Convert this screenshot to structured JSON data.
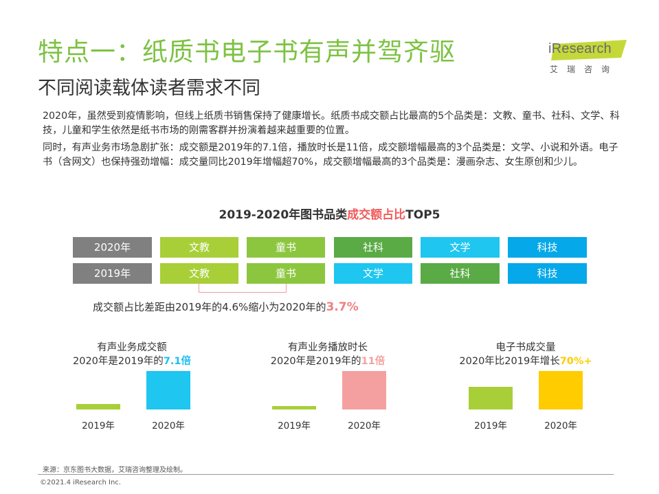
{
  "header": {
    "title": "特点一：纸质书电子书有声并驾齐驱",
    "subtitle": "不同阅读载体读者需求不同"
  },
  "logo": {
    "brand": "iResearch",
    "cn": "艾瑞咨询",
    "icon": "iresearch-logo-icon",
    "accent": "#c5d83a"
  },
  "paragraphs": [
    "2020年，虽然受到疫情影响，但线上纸质书销售保持了健康增长。纸质书成交额占比最高的5个品类是：文教、童书、社科、文学、科技，儿童和学生依然是纸书市场的刚需客群并扮演着越来越重要的位置。",
    "同时，有声业务市场急剧扩张：成交额是2019年的7.1倍，播放时长是11倍，成交额增幅最高的3个品类是：文学、小说和外语。电子书（含网文）也保持强劲增幅：成交量同比2019年增幅超70%，成交额增幅最高的3个品类是：漫画杂志、女生原创和少儿。"
  ],
  "ranking": {
    "title_prefix": "2019-2020年图书品类",
    "title_highlight": "成交额占比",
    "title_suffix": "TOP5",
    "rows": [
      {
        "year": "2020年",
        "items": [
          "文教",
          "童书",
          "社科",
          "文学",
          "科技"
        ]
      },
      {
        "year": "2019年",
        "items": [
          "文教",
          "童书",
          "文学",
          "社科",
          "科技"
        ]
      }
    ],
    "colors": {
      "year": "#808080",
      "文教": "#a8cf38",
      "童书": "#8cc63f",
      "社科": "#5aab46",
      "文学": "#1ec6f0",
      "科技": "#05a8e8"
    },
    "note_prefix": "成交额占比差距由2019年的4.6%缩小为2020年的",
    "note_highlight": "3.7%"
  },
  "chart_data": [
    {
      "type": "bar",
      "title_line1": "有声业务成交额",
      "title_line2_prefix": "2020年是2019年的",
      "title_line2_highlight": "7.1倍",
      "categories": [
        "2019年",
        "2020年"
      ],
      "values": [
        1,
        7.1
      ],
      "colors": [
        "#a8cf38",
        "#1ec6f0"
      ]
    },
    {
      "type": "bar",
      "title_line1": "有声业务播放时长",
      "title_line2_prefix": "2020年是2019年的",
      "title_line2_highlight": "11倍",
      "categories": [
        "2019年",
        "2020年"
      ],
      "values": [
        1,
        11
      ],
      "colors": [
        "#a8cf38",
        "#f4a0a0"
      ]
    },
    {
      "type": "bar",
      "title_line1": "电子书成交量",
      "title_line2_prefix": "2020年比2019年增长",
      "title_line2_highlight": "70%+",
      "categories": [
        "2019年",
        "2020年"
      ],
      "values": [
        1,
        1.7
      ],
      "colors": [
        "#a8cf38",
        "#ffcc00"
      ]
    }
  ],
  "footer": {
    "source": "来源：京东图书大数据，艾瑞咨询整理及绘制。",
    "copyright": "©2021.4 iResearch Inc."
  }
}
